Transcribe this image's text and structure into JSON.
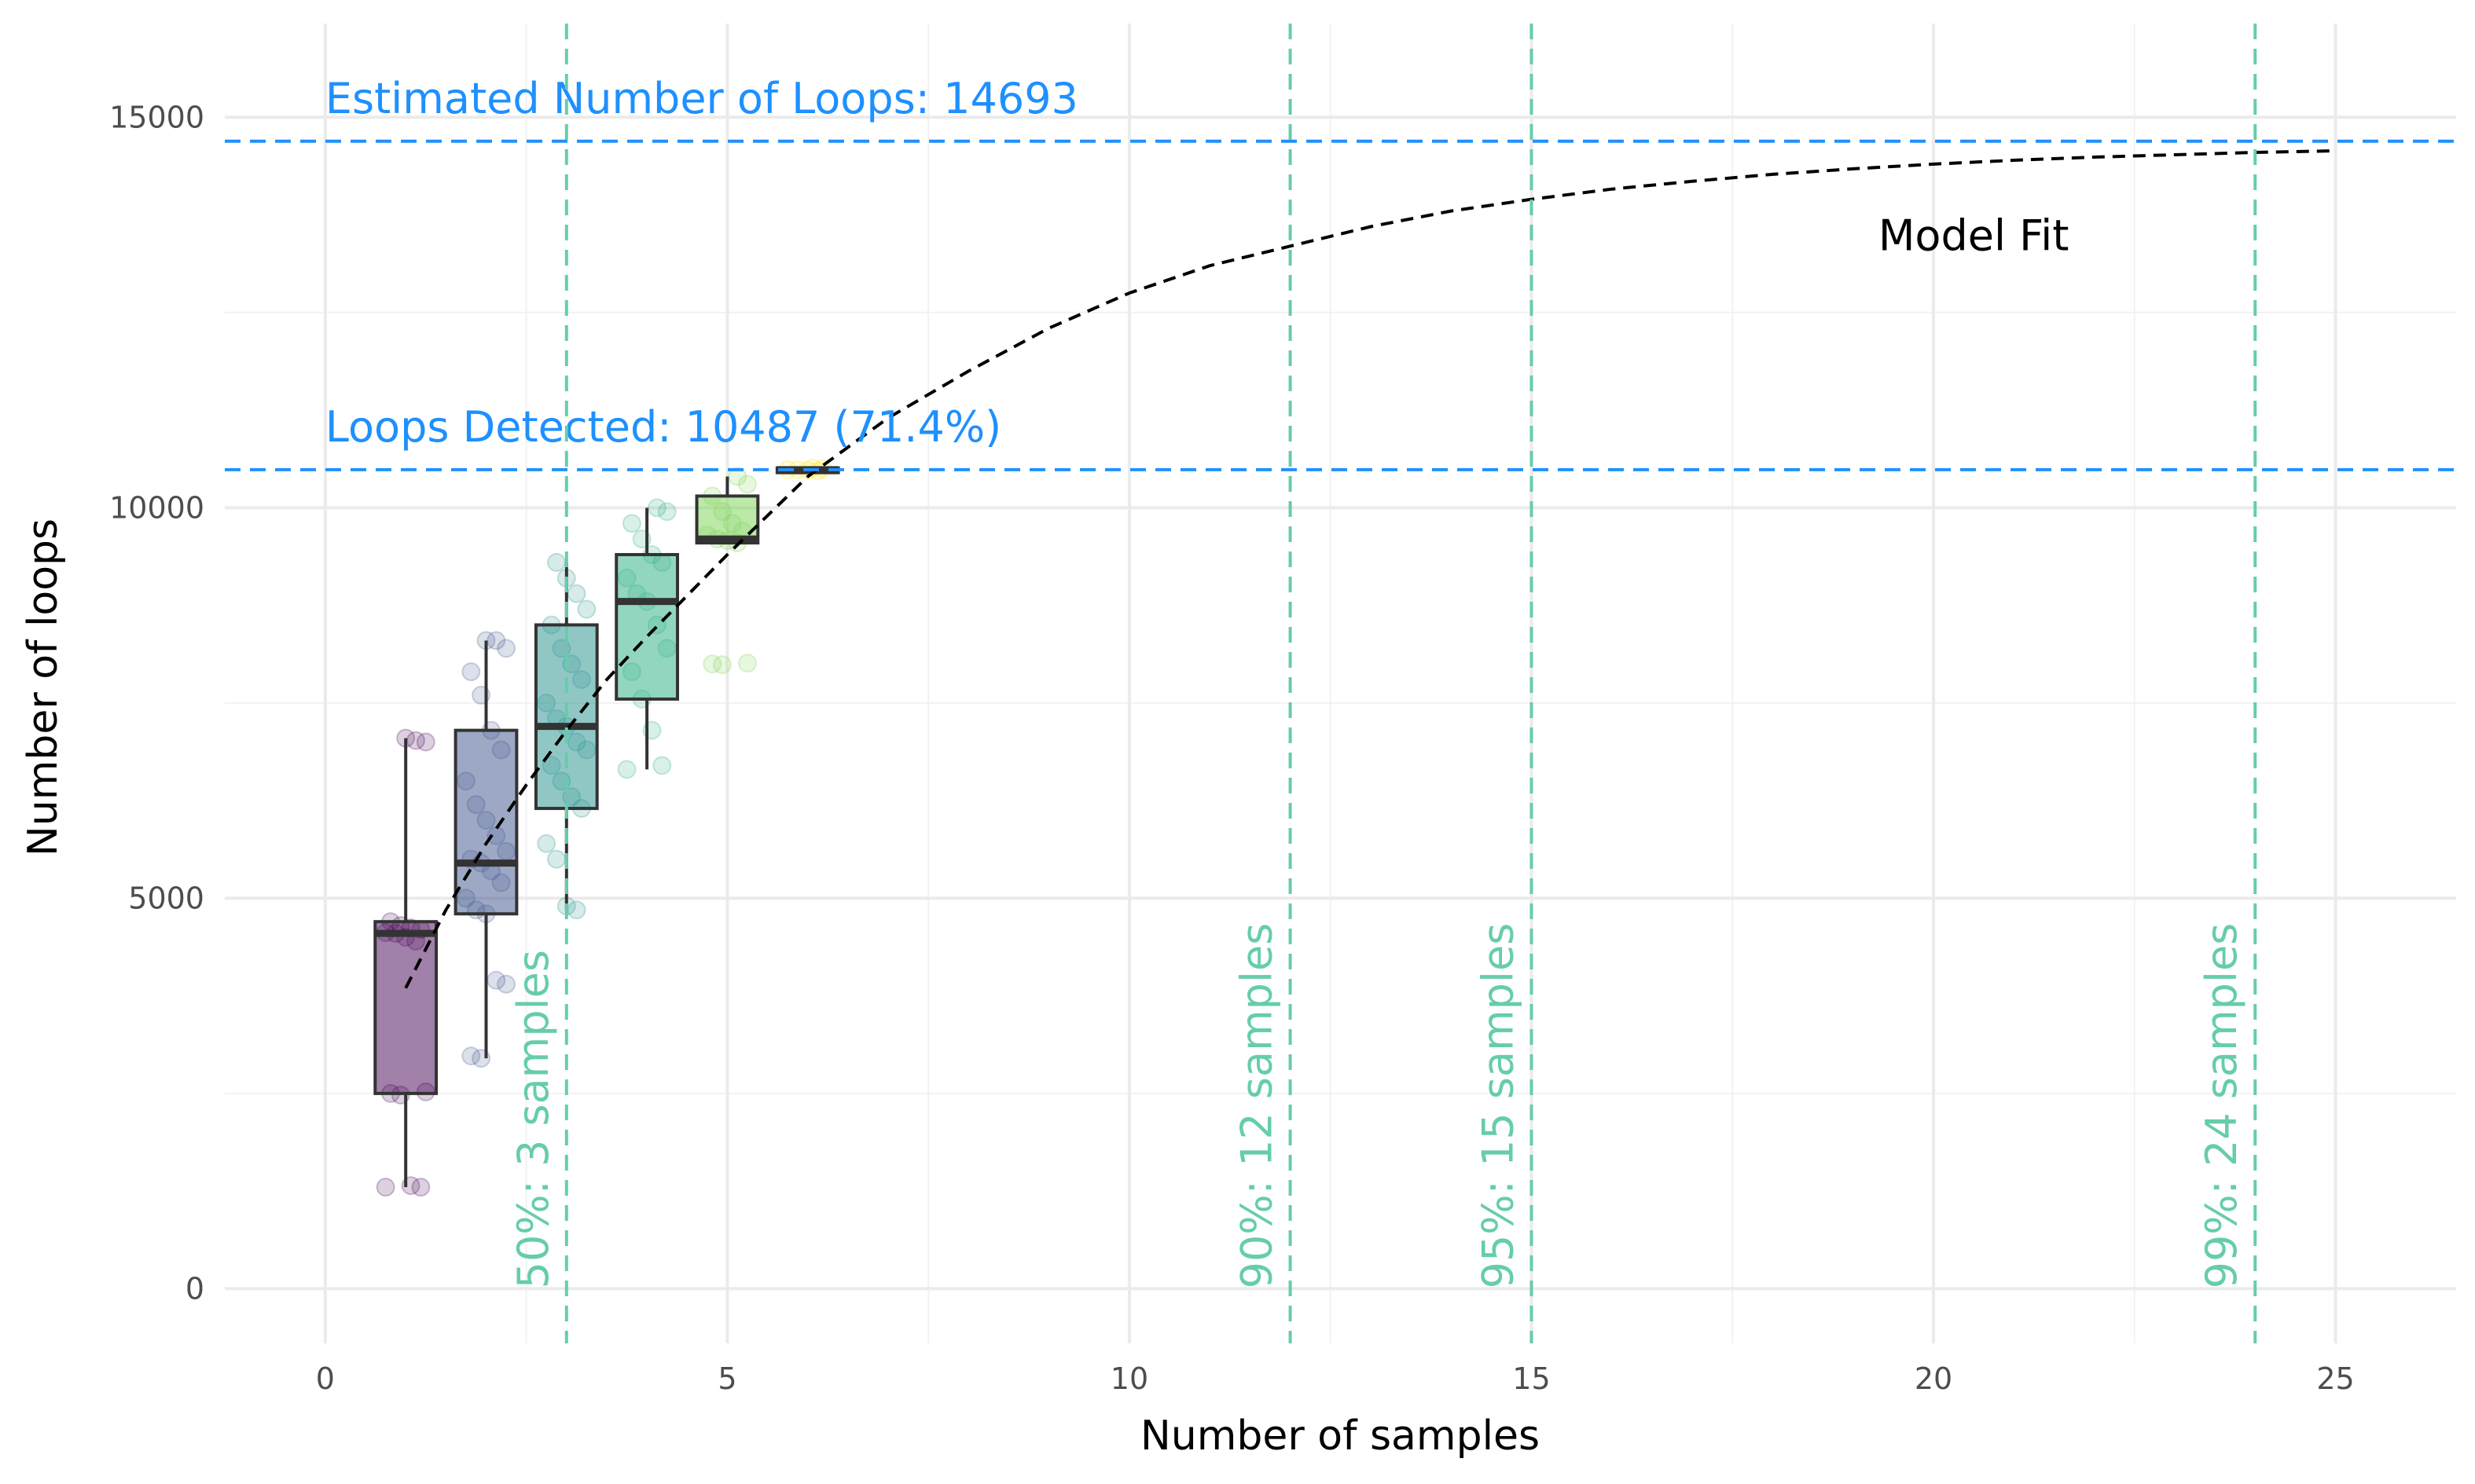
{
  "chart_data": {
    "type": "box",
    "title": "",
    "xlabel": "Number of samples",
    "ylabel": "Number of loops",
    "xlim": [
      -1.25,
      26.5
    ],
    "ylim": [
      -700,
      16200
    ],
    "x_ticks": [
      0,
      5,
      10,
      15,
      20,
      25
    ],
    "x_tick_labels": [
      "0",
      "5",
      "10",
      "15",
      "20",
      "25"
    ],
    "y_ticks": [
      0,
      5000,
      10000,
      15000
    ],
    "y_tick_labels": [
      "0",
      "5000",
      "10000",
      "15000"
    ],
    "grid": true,
    "legend": "none",
    "boxes": [
      {
        "x": 1,
        "q1": 2500,
        "median": 4550,
        "q3": 4700,
        "whisker_low": 1300,
        "whisker_high": 7050,
        "color": "#440154",
        "points": [
          1300,
          1300,
          1320,
          2480,
          2500,
          2520,
          4450,
          4500,
          4550,
          4560,
          4600,
          4620,
          4650,
          4700,
          7000,
          7020,
          7050
        ]
      },
      {
        "x": 2,
        "q1": 4800,
        "median": 5450,
        "q3": 7150,
        "whisker_low": 2950,
        "whisker_high": 8300,
        "color": "#3B528B",
        "points": [
          2950,
          2980,
          3900,
          3950,
          4800,
          4850,
          5000,
          5200,
          5350,
          5450,
          5500,
          5600,
          5800,
          6000,
          6200,
          6500,
          6900,
          7150,
          7600,
          7900,
          8200,
          8300,
          8300
        ]
      },
      {
        "x": 3,
        "q1": 6150,
        "median": 7200,
        "q3": 8500,
        "whisker_low": 4850,
        "whisker_high": 9300,
        "color": "#21908C",
        "points": [
          4850,
          4900,
          5500,
          5700,
          6150,
          6300,
          6500,
          6700,
          6900,
          7000,
          7200,
          7300,
          7500,
          7800,
          8000,
          8200,
          8500,
          8700,
          8900,
          9100,
          9300
        ]
      },
      {
        "x": 4,
        "q1": 7550,
        "median": 8800,
        "q3": 9400,
        "whisker_low": 6650,
        "whisker_high": 10000,
        "color": "#27AD81",
        "points": [
          6650,
          6700,
          7150,
          7550,
          7900,
          8200,
          8500,
          8800,
          8900,
          9100,
          9300,
          9400,
          9600,
          9800,
          9950,
          10000
        ]
      },
      {
        "x": 5,
        "q1": 9550,
        "median": 9600,
        "q3": 10150,
        "whisker_low": 9550,
        "whisker_high": 10400,
        "color": "#7AD151",
        "points": [
          7990,
          8000,
          8010,
          9550,
          9580,
          9600,
          9650,
          9700,
          9800,
          9950,
          10150,
          10300,
          10400
        ]
      },
      {
        "x": 6,
        "q1": 10470,
        "median": 10487,
        "q3": 10510,
        "whisker_low": 10470,
        "whisker_high": 10510,
        "color": "#FDE725",
        "points": [
          10470,
          10480,
          10487,
          10490,
          10500,
          10510
        ]
      }
    ],
    "model_fit": {
      "label": "Model Fit",
      "x": [
        1,
        1.5,
        2,
        2.5,
        3,
        3.5,
        4,
        5,
        6,
        7,
        8,
        9,
        10,
        11,
        12,
        13,
        14,
        15,
        16,
        17,
        18,
        19,
        20,
        21,
        22,
        23,
        24,
        25
      ],
      "y": [
        3850,
        4850,
        5700,
        6450,
        7150,
        7800,
        8350,
        9400,
        10400,
        11150,
        11750,
        12300,
        12750,
        13100,
        13350,
        13600,
        13800,
        13950,
        14080,
        14180,
        14270,
        14340,
        14400,
        14450,
        14490,
        14520,
        14550,
        14570
      ],
      "color": "#000000"
    },
    "hlines": [
      {
        "y": 14693,
        "label": "Estimated Number of Loops: 14693",
        "color": "#1E90FF"
      },
      {
        "y": 10487,
        "label": "Loops Detected: 10487 (71.4%)",
        "color": "#1E90FF"
      }
    ],
    "vlines": [
      {
        "x": 3,
        "label": "50%: 3 samples",
        "color": "#66CDAA"
      },
      {
        "x": 12,
        "label": "90%: 12 samples",
        "color": "#66CDAA"
      },
      {
        "x": 15,
        "label": "95%: 15 samples",
        "color": "#66CDAA"
      },
      {
        "x": 24,
        "label": "99%: 24 samples",
        "color": "#66CDAA"
      }
    ]
  }
}
